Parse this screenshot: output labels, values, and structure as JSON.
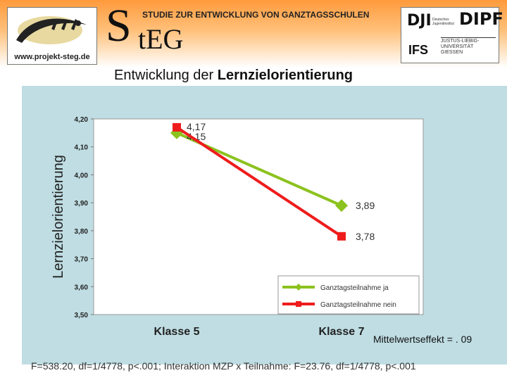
{
  "header": {
    "logo_url": "www.projekt-steg.de",
    "steg_big_letter": "S",
    "steg_rest": "tEG",
    "subtitle": "STUDIE ZUR ENTWICKLUNG VON GANZTAGSSCHULEN",
    "partners": {
      "dji": "DJI",
      "dji_sub": "Deutsches Jugendinstitut",
      "dipf": "DIPF",
      "ifs": "IFS",
      "uni": "JUSTUS-LIEBIG-UNIVERSITÄT GIESSEN"
    },
    "band_color": "#ff9a3c"
  },
  "slide": {
    "title_prefix": "Entwicklung der ",
    "title_bold": "Lernzielorientierung",
    "effect": "Mittelwertseffekt = . 09",
    "footnote": "F=538.20, df=1/4778, p<.001; Interaktion MZP x Teilnahme: F=23.76, df=1/4778, p<.001"
  },
  "chart_data": {
    "type": "line",
    "categories": [
      "Klasse 5",
      "Klasse 7"
    ],
    "ylabel": "Lernzielorientierung",
    "ylim": [
      3.5,
      4.2
    ],
    "yticks": [
      "3,50",
      "3,60",
      "3,70",
      "3,80",
      "3,90",
      "4,00",
      "4,10",
      "4,20"
    ],
    "grid": false,
    "legend": "bottom-right",
    "series": [
      {
        "name": "Ganztagsteilnahme ja",
        "values": [
          4.15,
          3.89
        ],
        "labels": [
          "4,15",
          "3,89"
        ],
        "color": "#8cc21f",
        "marker": "diamond"
      },
      {
        "name": "Ganztagsteilnahme nein",
        "values": [
          4.17,
          3.78
        ],
        "labels": [
          "4,17",
          "3,78"
        ],
        "color": "#ee1c1c",
        "marker": "square"
      }
    ],
    "panel_color": "#bfdde3"
  }
}
